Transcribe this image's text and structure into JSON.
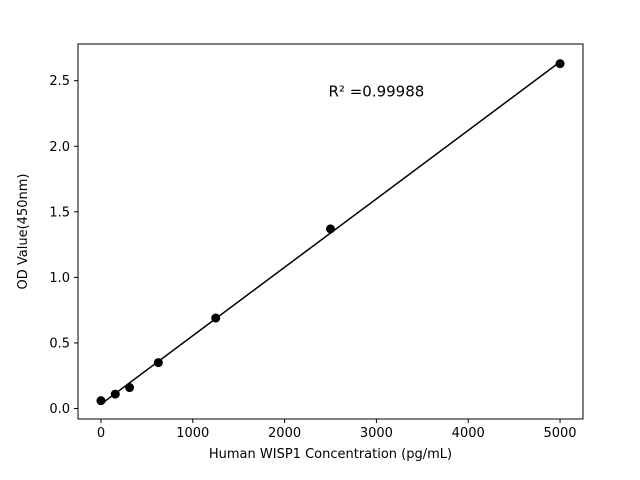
{
  "page": {
    "background": "#ffffff",
    "foreground": "#000000"
  },
  "chart_data": {
    "type": "scatter",
    "x": [
      0,
      156,
      312,
      625,
      1250,
      2500,
      5000
    ],
    "y": [
      0.06,
      0.11,
      0.16,
      0.35,
      0.69,
      1.37,
      2.63
    ],
    "title": "",
    "xlabel": "Human WISP1 Concentration (pg/mL)",
    "ylabel": "OD Value(450nm)",
    "annotation": {
      "text": "R² =0.99988",
      "x": 3000,
      "y": 2.38
    },
    "xlim": [
      -250,
      5250
    ],
    "ylim": [
      -0.08,
      2.78
    ],
    "x_ticks": [
      0,
      1000,
      2000,
      3000,
      4000,
      5000
    ],
    "y_ticks": [
      0.0,
      0.5,
      1.0,
      1.5,
      2.0,
      2.5
    ],
    "y_tick_decimals": 1,
    "grid": false,
    "legend": "none",
    "marker_color": "#000000",
    "line_color": "#000000",
    "marker_radius": 4.5,
    "line_width": 1.5,
    "regression_line": true
  }
}
